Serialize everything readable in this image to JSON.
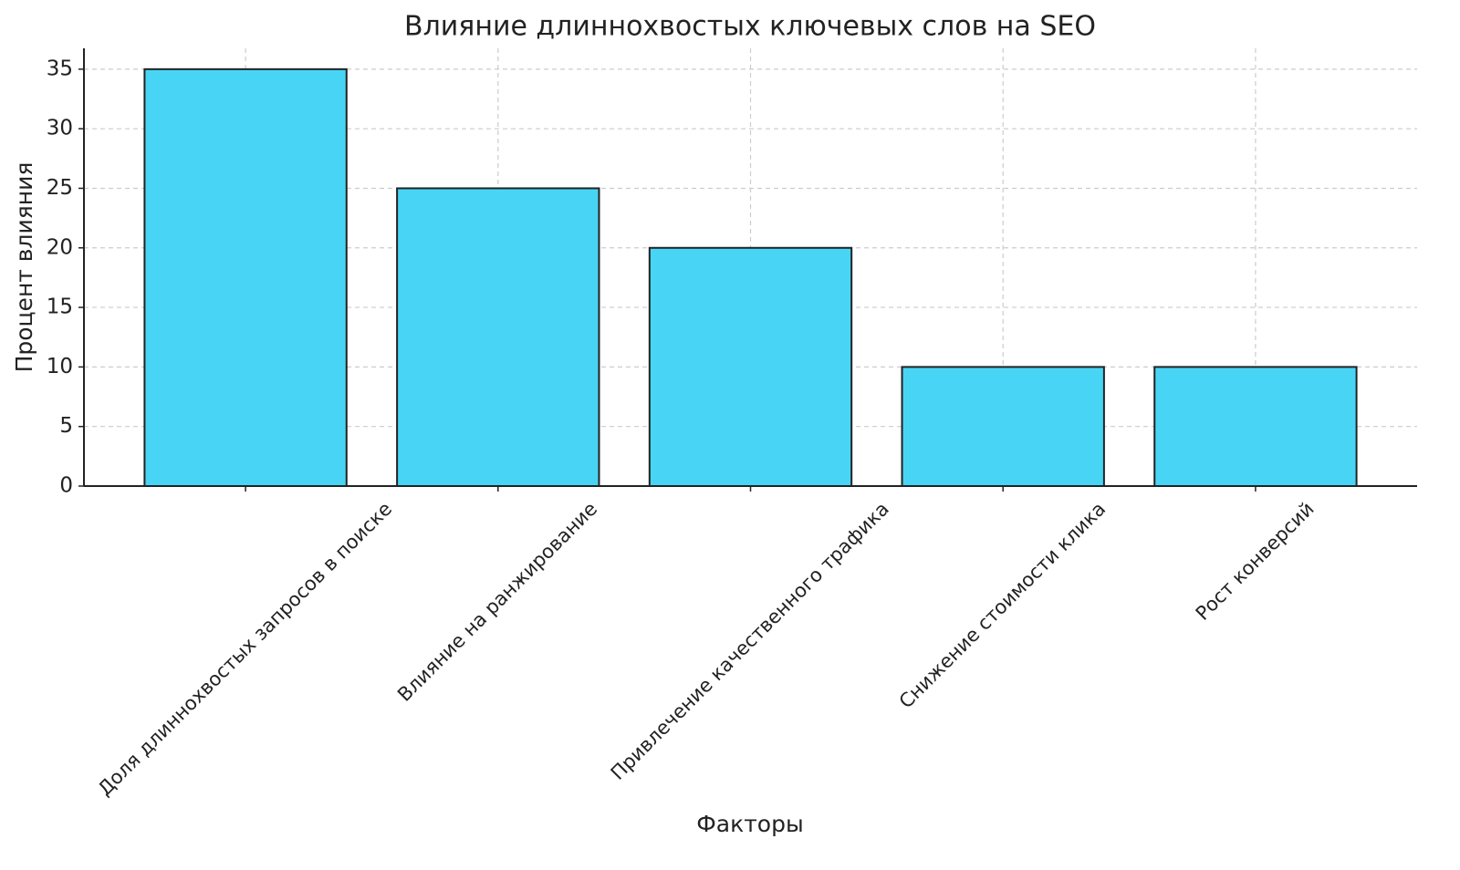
{
  "chart_data": {
    "type": "bar",
    "title": "Влияние длиннохвостых ключевых слов на SEO",
    "x_label": "Факторы",
    "y_label": "Процент влияния",
    "categories": [
      "Доля длиннохвостых запросов в поиске",
      "Влияние на ранжирование",
      "Привлечение качественного трафика",
      "Снижение стоимости клика",
      "Рост конверсий"
    ],
    "values": [
      35,
      25,
      20,
      10,
      10
    ],
    "color": "#48d5f5",
    "ylim": [
      0,
      36.75
    ],
    "yticks": [
      0,
      5,
      10,
      15,
      20,
      25,
      30,
      35
    ],
    "grid": true
  }
}
